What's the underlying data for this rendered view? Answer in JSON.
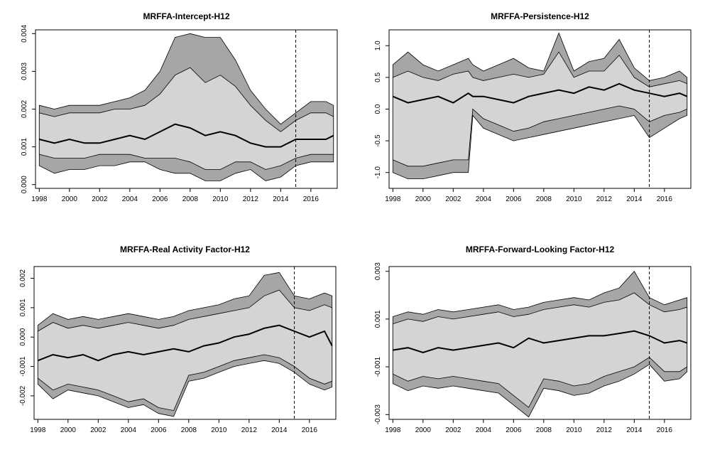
{
  "chart_data": [
    {
      "type": "area",
      "title": "MRFFA-Intercept-H12",
      "x_ticks": [
        "1998",
        "2000",
        "2002",
        "2004",
        "2006",
        "2008",
        "2010",
        "2012",
        "2014",
        "2016"
      ],
      "y_ticks": [
        "0.000",
        "0.001",
        "0.002",
        "0.003",
        "0.004"
      ],
      "xlim": [
        1997.75,
        2017.75
      ],
      "ylim": [
        -0.0001,
        0.0041
      ],
      "grid": false,
      "vline_x": 2015.0,
      "x": [
        1998,
        1999,
        2000,
        2001,
        2002,
        2003,
        2004,
        2005,
        2006,
        2007,
        2008,
        2009,
        2010,
        2011,
        2012,
        2013,
        2014,
        2015,
        2016,
        2017,
        2017.5
      ],
      "series": [
        {
          "role": "outer_lower",
          "values": [
            0.0005,
            0.0003,
            0.0004,
            0.0004,
            0.0005,
            0.0005,
            0.0006,
            0.0006,
            0.0004,
            0.0003,
            0.0003,
            0.0001,
            0.0001,
            0.0003,
            0.0004,
            0.0001,
            0.0002,
            0.0005,
            0.0006,
            0.0006,
            0.0006
          ]
        },
        {
          "role": "inner_lower",
          "values": [
            0.0008,
            0.0007,
            0.0007,
            0.0007,
            0.0008,
            0.0008,
            0.0008,
            0.0007,
            0.0007,
            0.0007,
            0.0006,
            0.0004,
            0.0004,
            0.0006,
            0.0006,
            0.0004,
            0.0005,
            0.0007,
            0.0008,
            0.0008,
            0.0008
          ]
        },
        {
          "role": "median",
          "values": [
            0.0012,
            0.0011,
            0.0012,
            0.0011,
            0.0011,
            0.0012,
            0.0013,
            0.0012,
            0.0014,
            0.0016,
            0.0015,
            0.0013,
            0.0014,
            0.0013,
            0.0011,
            0.001,
            0.001,
            0.0012,
            0.0012,
            0.0012,
            0.0013
          ]
        },
        {
          "role": "inner_upper",
          "values": [
            0.0019,
            0.0018,
            0.0019,
            0.0019,
            0.0019,
            0.002,
            0.002,
            0.0021,
            0.0024,
            0.0029,
            0.0031,
            0.0027,
            0.0029,
            0.0026,
            0.0021,
            0.0017,
            0.0014,
            0.0017,
            0.0019,
            0.0019,
            0.0018
          ]
        },
        {
          "role": "outer_upper",
          "values": [
            0.0021,
            0.002,
            0.0021,
            0.0021,
            0.0021,
            0.0022,
            0.0023,
            0.0025,
            0.003,
            0.0039,
            0.004,
            0.0039,
            0.0039,
            0.0033,
            0.0025,
            0.002,
            0.0016,
            0.0019,
            0.0022,
            0.0022,
            0.0021
          ]
        }
      ]
    },
    {
      "type": "area",
      "title": "MRFFA-Persistence-H12",
      "x_ticks": [
        "1998",
        "2000",
        "2002",
        "2004",
        "2006",
        "2008",
        "2010",
        "2012",
        "2014",
        "2016"
      ],
      "y_ticks": [
        "-1.0",
        "-0.5",
        "0.0",
        "0.5",
        "1.0"
      ],
      "xlim": [
        1997.75,
        2017.75
      ],
      "ylim": [
        -1.25,
        1.25
      ],
      "grid": false,
      "vline_x": 2015.0,
      "x": [
        1998,
        1999,
        2000,
        2001,
        2002,
        2003,
        2003.3,
        2004,
        2005,
        2006,
        2007,
        2008,
        2009,
        2010,
        2011,
        2012,
        2013,
        2014,
        2015,
        2016,
        2017,
        2017.5
      ],
      "series": [
        {
          "role": "outer_lower",
          "values": [
            -1.0,
            -1.1,
            -1.1,
            -1.05,
            -1.0,
            -1.0,
            -0.1,
            -0.3,
            -0.4,
            -0.5,
            -0.45,
            -0.4,
            -0.35,
            -0.3,
            -0.25,
            -0.2,
            -0.15,
            -0.1,
            -0.45,
            -0.3,
            -0.15,
            -0.1
          ]
        },
        {
          "role": "inner_lower",
          "values": [
            -0.8,
            -0.9,
            -0.9,
            -0.85,
            -0.8,
            -0.8,
            0.0,
            -0.15,
            -0.25,
            -0.35,
            -0.3,
            -0.2,
            -0.15,
            -0.1,
            -0.05,
            0.0,
            0.05,
            0.0,
            -0.2,
            -0.1,
            -0.05,
            0.0
          ]
        },
        {
          "role": "median",
          "values": [
            0.2,
            0.1,
            0.15,
            0.2,
            0.1,
            0.25,
            0.2,
            0.2,
            0.15,
            0.1,
            0.2,
            0.25,
            0.3,
            0.25,
            0.35,
            0.3,
            0.4,
            0.3,
            0.25,
            0.2,
            0.25,
            0.2
          ]
        },
        {
          "role": "inner_upper",
          "values": [
            0.5,
            0.6,
            0.5,
            0.45,
            0.55,
            0.6,
            0.5,
            0.45,
            0.5,
            0.55,
            0.5,
            0.55,
            0.9,
            0.5,
            0.6,
            0.6,
            0.85,
            0.5,
            0.35,
            0.4,
            0.45,
            0.4
          ]
        },
        {
          "role": "outer_upper",
          "values": [
            0.7,
            0.9,
            0.7,
            0.6,
            0.7,
            0.8,
            0.7,
            0.6,
            0.7,
            0.8,
            0.65,
            0.6,
            1.2,
            0.6,
            0.75,
            0.8,
            1.1,
            0.65,
            0.45,
            0.5,
            0.6,
            0.5
          ]
        }
      ]
    },
    {
      "type": "area",
      "title": "MRFFA-Real Activity Factor-H12",
      "x_ticks": [
        "1998",
        "2000",
        "2002",
        "2004",
        "2006",
        "2008",
        "2010",
        "2012",
        "2014",
        "2016"
      ],
      "y_ticks": [
        "-0.002",
        "-0.001",
        "0.000",
        "0.001",
        "0.002"
      ],
      "xlim": [
        1997.75,
        2017.75
      ],
      "ylim": [
        -0.0028,
        0.0024
      ],
      "grid": false,
      "vline_x": 2015.0,
      "x": [
        1998,
        1999,
        2000,
        2001,
        2002,
        2003,
        2004,
        2005,
        2006,
        2007,
        2008,
        2009,
        2010,
        2011,
        2012,
        2013,
        2014,
        2015,
        2016,
        2017,
        2017.5
      ],
      "series": [
        {
          "role": "outer_lower",
          "values": [
            -0.0016,
            -0.0021,
            -0.0018,
            -0.0019,
            -0.002,
            -0.0022,
            -0.0024,
            -0.0023,
            -0.0026,
            -0.0027,
            -0.0015,
            -0.0014,
            -0.0012,
            -0.001,
            -0.0009,
            -0.0008,
            -0.0009,
            -0.0012,
            -0.0016,
            -0.0018,
            -0.0017
          ]
        },
        {
          "role": "inner_lower",
          "values": [
            -0.0014,
            -0.0018,
            -0.0016,
            -0.0017,
            -0.0018,
            -0.002,
            -0.0022,
            -0.0021,
            -0.0024,
            -0.0025,
            -0.0013,
            -0.0012,
            -0.001,
            -0.0008,
            -0.0007,
            -0.0006,
            -0.0007,
            -0.001,
            -0.0014,
            -0.0016,
            -0.0015
          ]
        },
        {
          "role": "median",
          "values": [
            -0.0008,
            -0.0006,
            -0.0007,
            -0.0006,
            -0.0008,
            -0.0006,
            -0.0005,
            -0.0006,
            -0.0005,
            -0.0004,
            -0.0005,
            -0.0003,
            -0.0002,
            0.0,
            0.0001,
            0.0003,
            0.0004,
            0.0002,
            0.0,
            0.0002,
            -0.0003
          ]
        },
        {
          "role": "inner_upper",
          "values": [
            0.0002,
            0.0005,
            0.0003,
            0.0004,
            0.0003,
            0.0004,
            0.0005,
            0.0004,
            0.0003,
            0.0004,
            0.0006,
            0.0007,
            0.0008,
            0.0009,
            0.001,
            0.0014,
            0.0016,
            0.001,
            0.0009,
            0.0011,
            0.001
          ]
        },
        {
          "role": "outer_upper",
          "values": [
            0.0004,
            0.0008,
            0.0006,
            0.0007,
            0.0006,
            0.0007,
            0.0008,
            0.0007,
            0.0006,
            0.0007,
            0.0009,
            0.001,
            0.0011,
            0.0013,
            0.0014,
            0.0021,
            0.0022,
            0.0014,
            0.0013,
            0.0015,
            0.0014
          ]
        }
      ]
    },
    {
      "type": "area",
      "title": "MRFFA-Forward-Looking Factor-H12",
      "x_ticks": [
        "1998",
        "2000",
        "2002",
        "2004",
        "2006",
        "2008",
        "2010",
        "2012",
        "2014",
        "2016"
      ],
      "y_ticks": [
        "-0.003",
        "-0.001",
        "0.001",
        "0.003"
      ],
      "xlim": [
        1997.75,
        2017.75
      ],
      "ylim": [
        -0.0032,
        0.0032
      ],
      "grid": false,
      "vline_x": 2015.0,
      "x": [
        1998,
        1999,
        2000,
        2001,
        2002,
        2003,
        2004,
        2005,
        2006,
        2007,
        2008,
        2009,
        2010,
        2011,
        2012,
        2013,
        2014,
        2015,
        2016,
        2017,
        2017.5
      ],
      "series": [
        {
          "role": "outer_lower",
          "values": [
            -0.0017,
            -0.002,
            -0.0018,
            -0.0019,
            -0.0018,
            -0.0019,
            -0.002,
            -0.0021,
            -0.0026,
            -0.0031,
            -0.0019,
            -0.002,
            -0.0022,
            -0.0021,
            -0.0018,
            -0.0016,
            -0.0013,
            -0.0009,
            -0.0016,
            -0.0015,
            -0.0012
          ]
        },
        {
          "role": "inner_lower",
          "values": [
            -0.0013,
            -0.0016,
            -0.0014,
            -0.0015,
            -0.0014,
            -0.0015,
            -0.0016,
            -0.0017,
            -0.0022,
            -0.0027,
            -0.0015,
            -0.0016,
            -0.0018,
            -0.0017,
            -0.0014,
            -0.0012,
            -0.001,
            -0.0006,
            -0.0012,
            -0.0012,
            -0.001
          ]
        },
        {
          "role": "median",
          "values": [
            -0.0003,
            -0.0002,
            -0.0004,
            -0.0002,
            -0.0003,
            -0.0002,
            -0.0001,
            0.0,
            -0.0002,
            0.0002,
            0.0,
            0.0001,
            0.0002,
            0.0003,
            0.0003,
            0.0004,
            0.0005,
            0.0003,
            0.0,
            0.0001,
            0.0
          ]
        },
        {
          "role": "inner_upper",
          "values": [
            0.0008,
            0.001,
            0.0009,
            0.0011,
            0.001,
            0.0011,
            0.0012,
            0.0013,
            0.0011,
            0.0012,
            0.0014,
            0.0015,
            0.0016,
            0.0015,
            0.0017,
            0.0018,
            0.0021,
            0.0016,
            0.0013,
            0.0014,
            0.0015
          ]
        },
        {
          "role": "outer_upper",
          "values": [
            0.0011,
            0.0013,
            0.0012,
            0.0014,
            0.0013,
            0.0014,
            0.0015,
            0.0016,
            0.0014,
            0.0015,
            0.0017,
            0.0018,
            0.0019,
            0.0018,
            0.0021,
            0.0023,
            0.003,
            0.0019,
            0.0016,
            0.0018,
            0.0019
          ]
        }
      ]
    }
  ],
  "style": {
    "outer_band_color": "#a6a6a6",
    "inner_band_color": "#d4d4d4",
    "median_color": "#000000",
    "vline_color": "#000000"
  }
}
